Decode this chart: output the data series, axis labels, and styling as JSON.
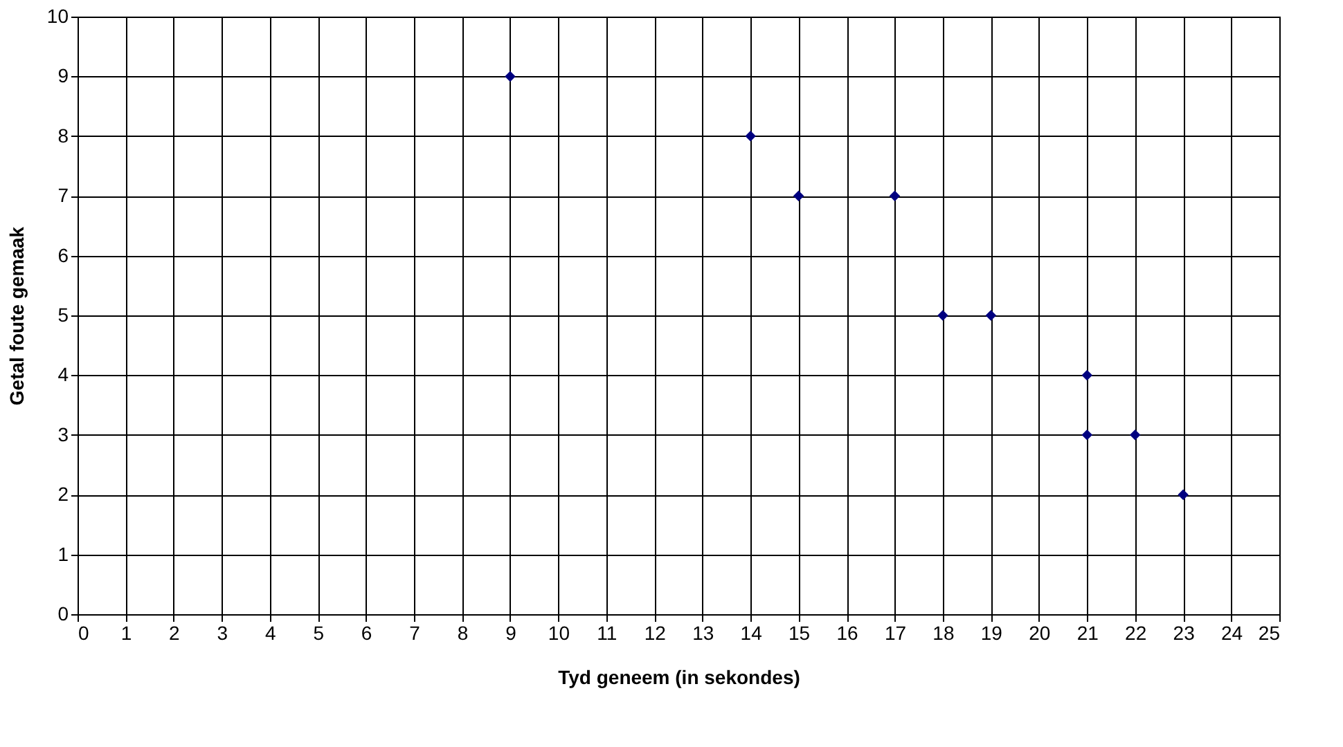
{
  "chart_data": {
    "type": "scatter",
    "xlabel": "Tyd geneem (in sekondes)",
    "ylabel": "Getal foute gemaak",
    "x": [
      9,
      14,
      15,
      17,
      18,
      19,
      21,
      21,
      22,
      23
    ],
    "series": [
      {
        "color": "#000080",
        "values": [
          9,
          8,
          7,
          7,
          5,
          5,
          4,
          3,
          3,
          2
        ]
      }
    ],
    "xlim": [
      0,
      25
    ],
    "xticks": [
      0,
      1,
      2,
      3,
      4,
      5,
      6,
      7,
      8,
      9,
      10,
      11,
      12,
      13,
      14,
      15,
      16,
      17,
      18,
      19,
      20,
      21,
      22,
      23,
      24,
      25
    ],
    "ylim": [
      0,
      10
    ],
    "yticks": [
      0,
      1,
      2,
      3,
      4,
      5,
      6,
      7,
      8,
      9,
      10
    ],
    "grid": true,
    "marker": "diamond",
    "legend": false
  }
}
